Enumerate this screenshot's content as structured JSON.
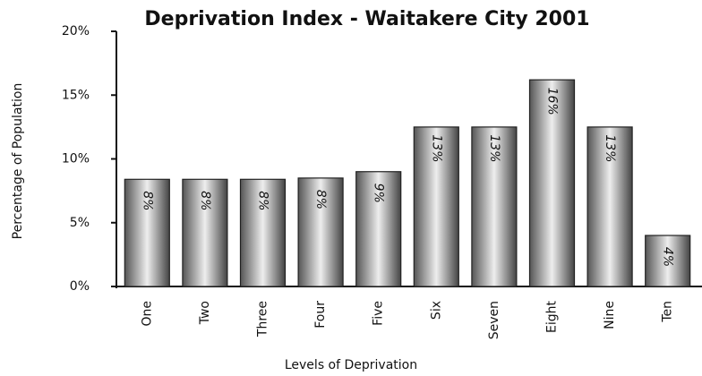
{
  "chart_data": {
    "type": "bar",
    "title": "Deprivation Index - Waitakere City 2001",
    "xlabel": "Levels of Deprivation",
    "ylabel": "Percentage of Population",
    "categories": [
      "One",
      "Two",
      "Three",
      "Four",
      "Five",
      "Six",
      "Seven",
      "Eight",
      "Nine",
      "Ten"
    ],
    "values": [
      8.4,
      8.4,
      8.4,
      8.5,
      9.0,
      12.5,
      12.5,
      16.2,
      12.5,
      4.0
    ],
    "value_labels": [
      "8%",
      "8%",
      "8%",
      "8%",
      "9%",
      "13%",
      "13%",
      "16%",
      "13%",
      "4%"
    ],
    "color": "#8c8c8c",
    "ylim": [
      0,
      20
    ],
    "yticks": [
      {
        "value": 0,
        "label": "0%"
      },
      {
        "value": 5,
        "label": "5%"
      },
      {
        "value": 10,
        "label": "10%"
      },
      {
        "value": 15,
        "label": "15%"
      },
      {
        "value": 20,
        "label": "20%"
      }
    ]
  }
}
